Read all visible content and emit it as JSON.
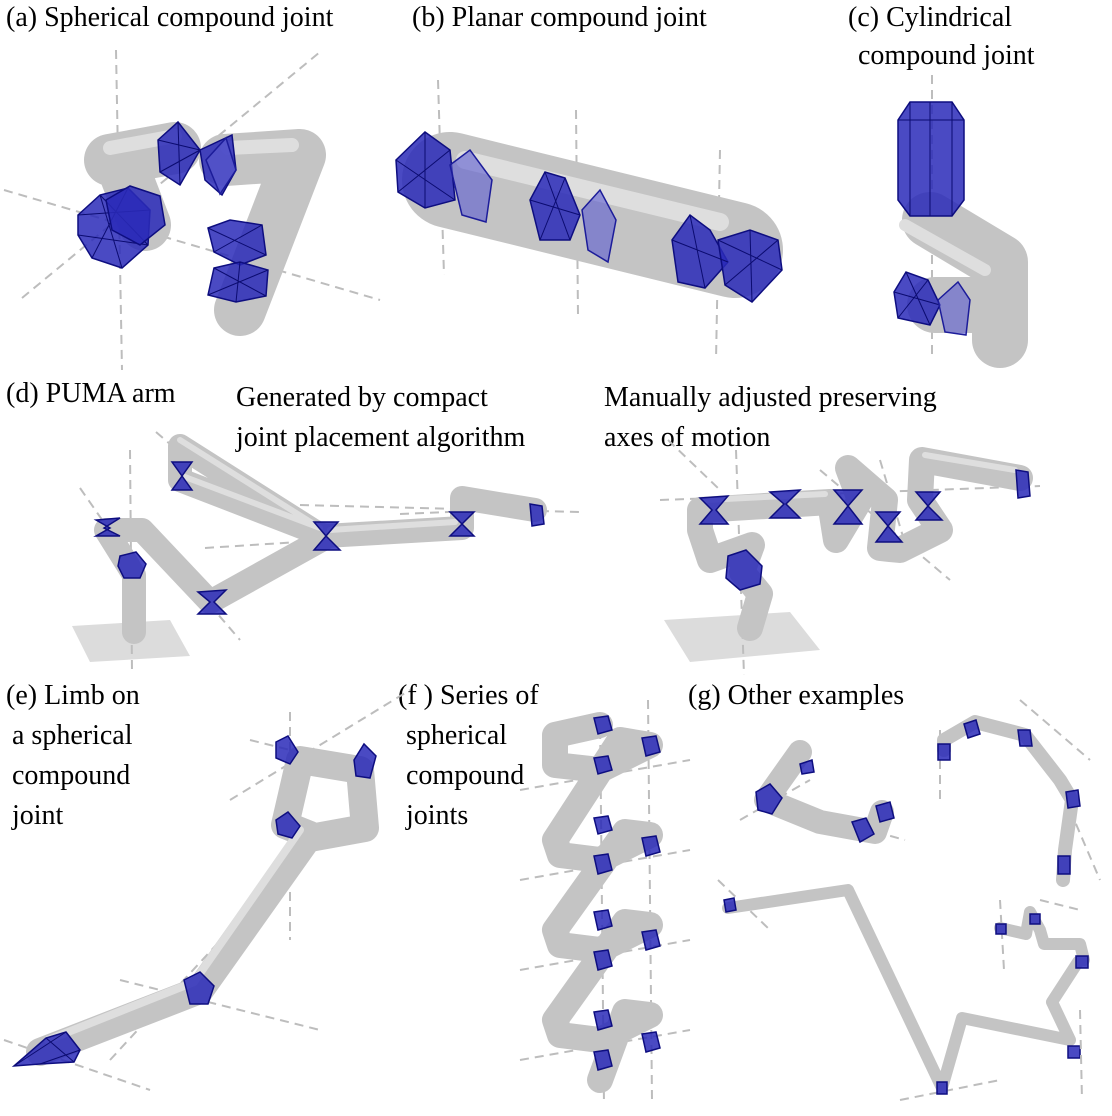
{
  "panels": {
    "a": {
      "label": "(a) Spherical compound joint"
    },
    "b": {
      "label": "(b) Planar compound joint"
    },
    "c": {
      "label_line1": "(c) Cylindrical",
      "label_line2": "compound joint"
    },
    "d": {
      "label": "(d) PUMA arm",
      "sub_left_line1": "Generated by compact",
      "sub_left_line2": "joint placement algorithm",
      "sub_right_line1": "Manually adjusted preserving",
      "sub_right_line2": "axes of motion"
    },
    "e": {
      "label_line1": "(e) Limb on",
      "label_line2": "a spherical",
      "label_line3": "compound",
      "label_line4": "joint"
    },
    "f": {
      "label_line1": "(f ) Series of",
      "label_line2": "spherical",
      "label_line3": "compound",
      "label_line4": "joints"
    },
    "g": {
      "label": "(g) Other examples"
    }
  },
  "colors": {
    "link": "#c8c8c8",
    "link_edge": "#a9a9a9",
    "joint": "#1a1aa8",
    "joint_light": "#6a6ad6",
    "axis": "#bdbdbd",
    "base": "#dcdcdc"
  }
}
